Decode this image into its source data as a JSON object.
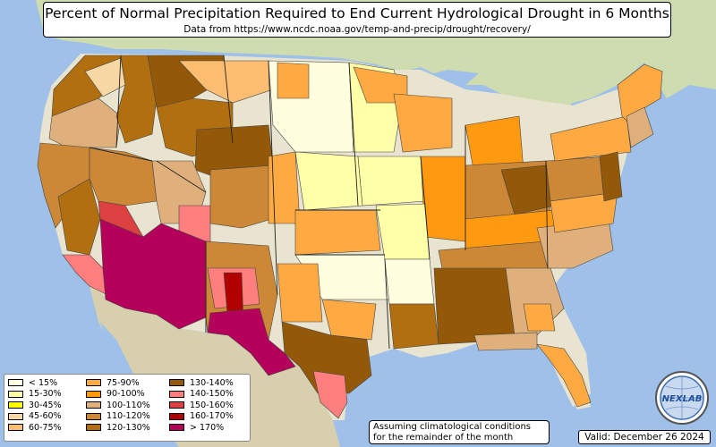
{
  "title": "Percent of Normal Precipitation Required to End Current Hydrological Drought in 6 Months",
  "subtitle": "Data from https://www.ncdc.noaa.gov/temp-and-precip/drought/recovery/",
  "note_line1": "Assuming climatological conditions",
  "note_line2": "for the remainder of the month",
  "valid": "Valid: December 26 2024",
  "logo_text": "NEXLAB",
  "colors": {
    "ocean": "#9fc0e8",
    "land": "#e8e4cf",
    "land_green": "#cfdcb0",
    "terrain": "#d8cfae"
  },
  "legend": [
    {
      "label": "< 15%",
      "color": "#ffffe0"
    },
    {
      "label": "15-30%",
      "color": "#ffffa8"
    },
    {
      "label": "30-45%",
      "color": "#ffff00"
    },
    {
      "label": "45-60%",
      "color": "#f7d7a3"
    },
    {
      "label": "60-75%",
      "color": "#fbbd6f"
    },
    {
      "label": "75-90%",
      "color": "#ffa942"
    },
    {
      "label": "90-100%",
      "color": "#ff9a10"
    },
    {
      "label": "100-110%",
      "color": "#e0b07c"
    },
    {
      "label": "110-120%",
      "color": "#cc8836"
    },
    {
      "label": "120-130%",
      "color": "#b26f10"
    },
    {
      "label": "130-140%",
      "color": "#935908"
    },
    {
      "label": "140-150%",
      "color": "#ff7f7f"
    },
    {
      "label": "150-160%",
      "color": "#dc4040"
    },
    {
      "label": "160-170%",
      "color": "#b00000"
    },
    {
      "label": "> 170%",
      "color": "#b4005a"
    }
  ]
}
